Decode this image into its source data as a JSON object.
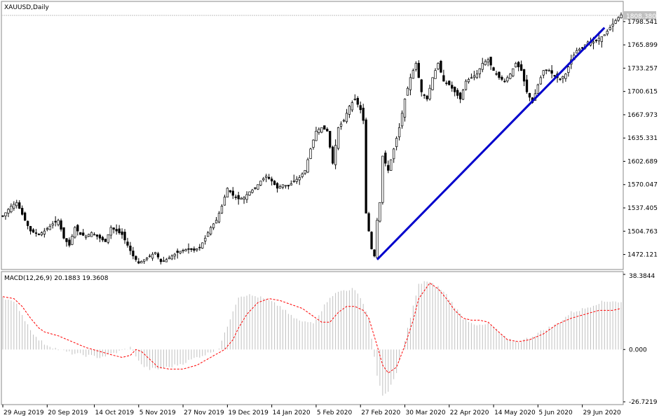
{
  "chart_data": [
    {
      "type": "candlestick",
      "title": "XAUUSD,Daily",
      "symbol": "XAUUSD",
      "timeframe": "Daily",
      "current_price_label": "1808.380",
      "ylim": [
        1456.0,
        1817.0
      ],
      "price_ticks": [
        "1798.541",
        "1765.899",
        "1733.257",
        "1700.615",
        "1667.973",
        "1635.331",
        "1602.689",
        "1570.047",
        "1537.405",
        "1504.763",
        "1472.121"
      ],
      "date_ticks": [
        "29 Aug 2019",
        "20 Sep 2019",
        "14 Oct 2019",
        "5 Nov 2019",
        "27 Nov 2019",
        "19 Dec 2019",
        "14 Jan 2020",
        "5 Feb 2020",
        "27 Feb 2020",
        "30 Mar 2020",
        "22 Apr 2020",
        "14 May 2020",
        "5 Jun 2020",
        "29 Jun 2020"
      ],
      "close_path": [
        [
          0,
          1526
        ],
        [
          3,
          1540
        ],
        [
          5,
          1545
        ],
        [
          8,
          1520
        ],
        [
          10,
          1505
        ],
        [
          13,
          1500
        ],
        [
          15,
          1505
        ],
        [
          18,
          1515
        ],
        [
          20,
          1520
        ],
        [
          22,
          1495
        ],
        [
          24,
          1485
        ],
        [
          26,
          1510
        ],
        [
          28,
          1500
        ],
        [
          30,
          1498
        ],
        [
          32,
          1503
        ],
        [
          35,
          1495
        ],
        [
          37,
          1490
        ],
        [
          39,
          1510
        ],
        [
          41,
          1505
        ],
        [
          43,
          1500
        ],
        [
          45,
          1485
        ],
        [
          47,
          1470
        ],
        [
          49,
          1460
        ],
        [
          51,
          1465
        ],
        [
          53,
          1470
        ],
        [
          55,
          1475
        ],
        [
          57,
          1462
        ],
        [
          59,
          1465
        ],
        [
          61,
          1470
        ],
        [
          63,
          1475
        ],
        [
          65,
          1478
        ],
        [
          67,
          1480
        ],
        [
          69,
          1478
        ],
        [
          71,
          1482
        ],
        [
          73,
          1495
        ],
        [
          75,
          1510
        ],
        [
          77,
          1520
        ],
        [
          79,
          1540
        ],
        [
          81,
          1565
        ],
        [
          83,
          1555
        ],
        [
          85,
          1550
        ],
        [
          87,
          1552
        ],
        [
          89,
          1560
        ],
        [
          91,
          1565
        ],
        [
          93,
          1575
        ],
        [
          95,
          1582
        ],
        [
          97,
          1575
        ],
        [
          99,
          1565
        ],
        [
          101,
          1570
        ],
        [
          103,
          1568
        ],
        [
          105,
          1575
        ],
        [
          107,
          1580
        ],
        [
          109,
          1590
        ],
        [
          111,
          1620
        ],
        [
          113,
          1645
        ],
        [
          115,
          1650
        ],
        [
          117,
          1645
        ],
        [
          119,
          1600
        ],
        [
          121,
          1650
        ],
        [
          123,
          1660
        ],
        [
          125,
          1680
        ],
        [
          127,
          1690
        ],
        [
          129,
          1675
        ],
        [
          130,
          1660
        ],
        [
          131,
          1530
        ],
        [
          133,
          1480
        ],
        [
          134,
          1470
        ],
        [
          135,
          1520
        ],
        [
          136,
          1545
        ],
        [
          137,
          1610
        ],
        [
          139,
          1590
        ],
        [
          141,
          1620
        ],
        [
          143,
          1650
        ],
        [
          145,
          1690
        ],
        [
          147,
          1720
        ],
        [
          149,
          1740
        ],
        [
          151,
          1700
        ],
        [
          153,
          1690
        ],
        [
          155,
          1720
        ],
        [
          157,
          1740
        ],
        [
          159,
          1715
        ],
        [
          161,
          1710
        ],
        [
          163,
          1700
        ],
        [
          165,
          1690
        ],
        [
          167,
          1715
        ],
        [
          169,
          1720
        ],
        [
          171,
          1725
        ],
        [
          173,
          1740
        ],
        [
          175,
          1745
        ],
        [
          177,
          1730
        ],
        [
          179,
          1720
        ],
        [
          181,
          1715
        ],
        [
          183,
          1725
        ],
        [
          185,
          1740
        ],
        [
          187,
          1730
        ],
        [
          189,
          1700
        ],
        [
          191,
          1685
        ],
        [
          193,
          1710
        ],
        [
          195,
          1730
        ],
        [
          197,
          1730
        ],
        [
          199,
          1722
        ],
        [
          201,
          1718
        ],
        [
          203,
          1725
        ],
        [
          205,
          1745
        ],
        [
          207,
          1758
        ],
        [
          209,
          1762
        ],
        [
          211,
          1770
        ],
        [
          213,
          1770
        ],
        [
          215,
          1775
        ],
        [
          217,
          1780
        ],
        [
          219,
          1790
        ],
        [
          221,
          1800
        ],
        [
          223,
          1808
        ]
      ],
      "trend_line": {
        "from": [
          135,
          1465
        ],
        "to": [
          217,
          1790
        ]
      },
      "bar_count": 224
    },
    {
      "type": "macd",
      "title": "MACD(12,26,9) 20.1883 19.3608",
      "params": "12,26,9",
      "macd_value": "20.1883",
      "signal_value": "19.3608",
      "ylim": [
        -26.7219,
        38.3844
      ],
      "value_ticks": [
        "38.3844",
        "0.000",
        "-26.7219"
      ],
      "histogram_path": [
        [
          0,
          27
        ],
        [
          5,
          23
        ],
        [
          8,
          15
        ],
        [
          12,
          6
        ],
        [
          15,
          3
        ],
        [
          20,
          0
        ],
        [
          25,
          -2
        ],
        [
          30,
          -3
        ],
        [
          35,
          -4
        ],
        [
          40,
          -2
        ],
        [
          44,
          0
        ],
        [
          46,
          1
        ],
        [
          48,
          -3
        ],
        [
          50,
          -8
        ],
        [
          53,
          -10
        ],
        [
          56,
          -10
        ],
        [
          60,
          -9
        ],
        [
          65,
          -7
        ],
        [
          70,
          -4
        ],
        [
          74,
          -2
        ],
        [
          78,
          1
        ],
        [
          80,
          8
        ],
        [
          83,
          20
        ],
        [
          85,
          27
        ],
        [
          88,
          28
        ],
        [
          92,
          27
        ],
        [
          96,
          25
        ],
        [
          100,
          22
        ],
        [
          104,
          17
        ],
        [
          108,
          14
        ],
        [
          112,
          14
        ],
        [
          114,
          18
        ],
        [
          118,
          27
        ],
        [
          122,
          30
        ],
        [
          126,
          31
        ],
        [
          129,
          27
        ],
        [
          132,
          16
        ],
        [
          135,
          -14
        ],
        [
          137,
          -23
        ],
        [
          139,
          -22
        ],
        [
          142,
          -12
        ],
        [
          145,
          5
        ],
        [
          148,
          22
        ],
        [
          150,
          33
        ],
        [
          152,
          35
        ],
        [
          154,
          34
        ],
        [
          157,
          32
        ],
        [
          160,
          28
        ],
        [
          163,
          22
        ],
        [
          166,
          16
        ],
        [
          169,
          14
        ],
        [
          172,
          12
        ],
        [
          175,
          13
        ],
        [
          178,
          10
        ],
        [
          182,
          5
        ],
        [
          186,
          4
        ],
        [
          190,
          6
        ],
        [
          195,
          10
        ],
        [
          200,
          13
        ],
        [
          205,
          19
        ],
        [
          210,
          21
        ],
        [
          215,
          24
        ],
        [
          220,
          25
        ],
        [
          223,
          24
        ]
      ],
      "signal_path": [
        [
          0,
          27
        ],
        [
          4,
          26
        ],
        [
          7,
          22
        ],
        [
          10,
          16
        ],
        [
          13,
          11
        ],
        [
          15,
          9
        ],
        [
          20,
          7
        ],
        [
          25,
          4
        ],
        [
          30,
          1
        ],
        [
          35,
          -1
        ],
        [
          40,
          -3
        ],
        [
          43,
          -4
        ],
        [
          46,
          -3
        ],
        [
          48,
          0
        ],
        [
          50,
          -1
        ],
        [
          53,
          -5
        ],
        [
          56,
          -9
        ],
        [
          60,
          -10
        ],
        [
          65,
          -10
        ],
        [
          70,
          -8
        ],
        [
          75,
          -4
        ],
        [
          80,
          0
        ],
        [
          83,
          5
        ],
        [
          85,
          11
        ],
        [
          88,
          18
        ],
        [
          92,
          24
        ],
        [
          96,
          26
        ],
        [
          100,
          25
        ],
        [
          104,
          23
        ],
        [
          108,
          21
        ],
        [
          112,
          17
        ],
        [
          115,
          14
        ],
        [
          118,
          14
        ],
        [
          121,
          19
        ],
        [
          124,
          22
        ],
        [
          127,
          22
        ],
        [
          130,
          20
        ],
        [
          132,
          16
        ],
        [
          135,
          2
        ],
        [
          137,
          -8
        ],
        [
          139,
          -12
        ],
        [
          142,
          -9
        ],
        [
          145,
          2
        ],
        [
          148,
          15
        ],
        [
          150,
          26
        ],
        [
          152,
          30
        ],
        [
          154,
          34
        ],
        [
          157,
          31
        ],
        [
          160,
          26
        ],
        [
          163,
          20
        ],
        [
          166,
          16
        ],
        [
          169,
          15
        ],
        [
          172,
          15
        ],
        [
          175,
          14
        ],
        [
          178,
          10
        ],
        [
          182,
          5
        ],
        [
          186,
          4
        ],
        [
          190,
          5
        ],
        [
          195,
          8
        ],
        [
          200,
          13
        ],
        [
          205,
          16
        ],
        [
          210,
          18
        ],
        [
          215,
          20
        ],
        [
          220,
          20
        ],
        [
          223,
          21
        ]
      ],
      "bar_count": 224
    }
  ],
  "colors": {
    "candle_up": "#000000",
    "candle_down": "#000000",
    "trend_line": "#0000cc",
    "macd_histogram": "#c0c0c0",
    "signal_line": "#ff0000",
    "grid": "#c0c0c0",
    "price_tag_bg": "#c0c0c0"
  }
}
